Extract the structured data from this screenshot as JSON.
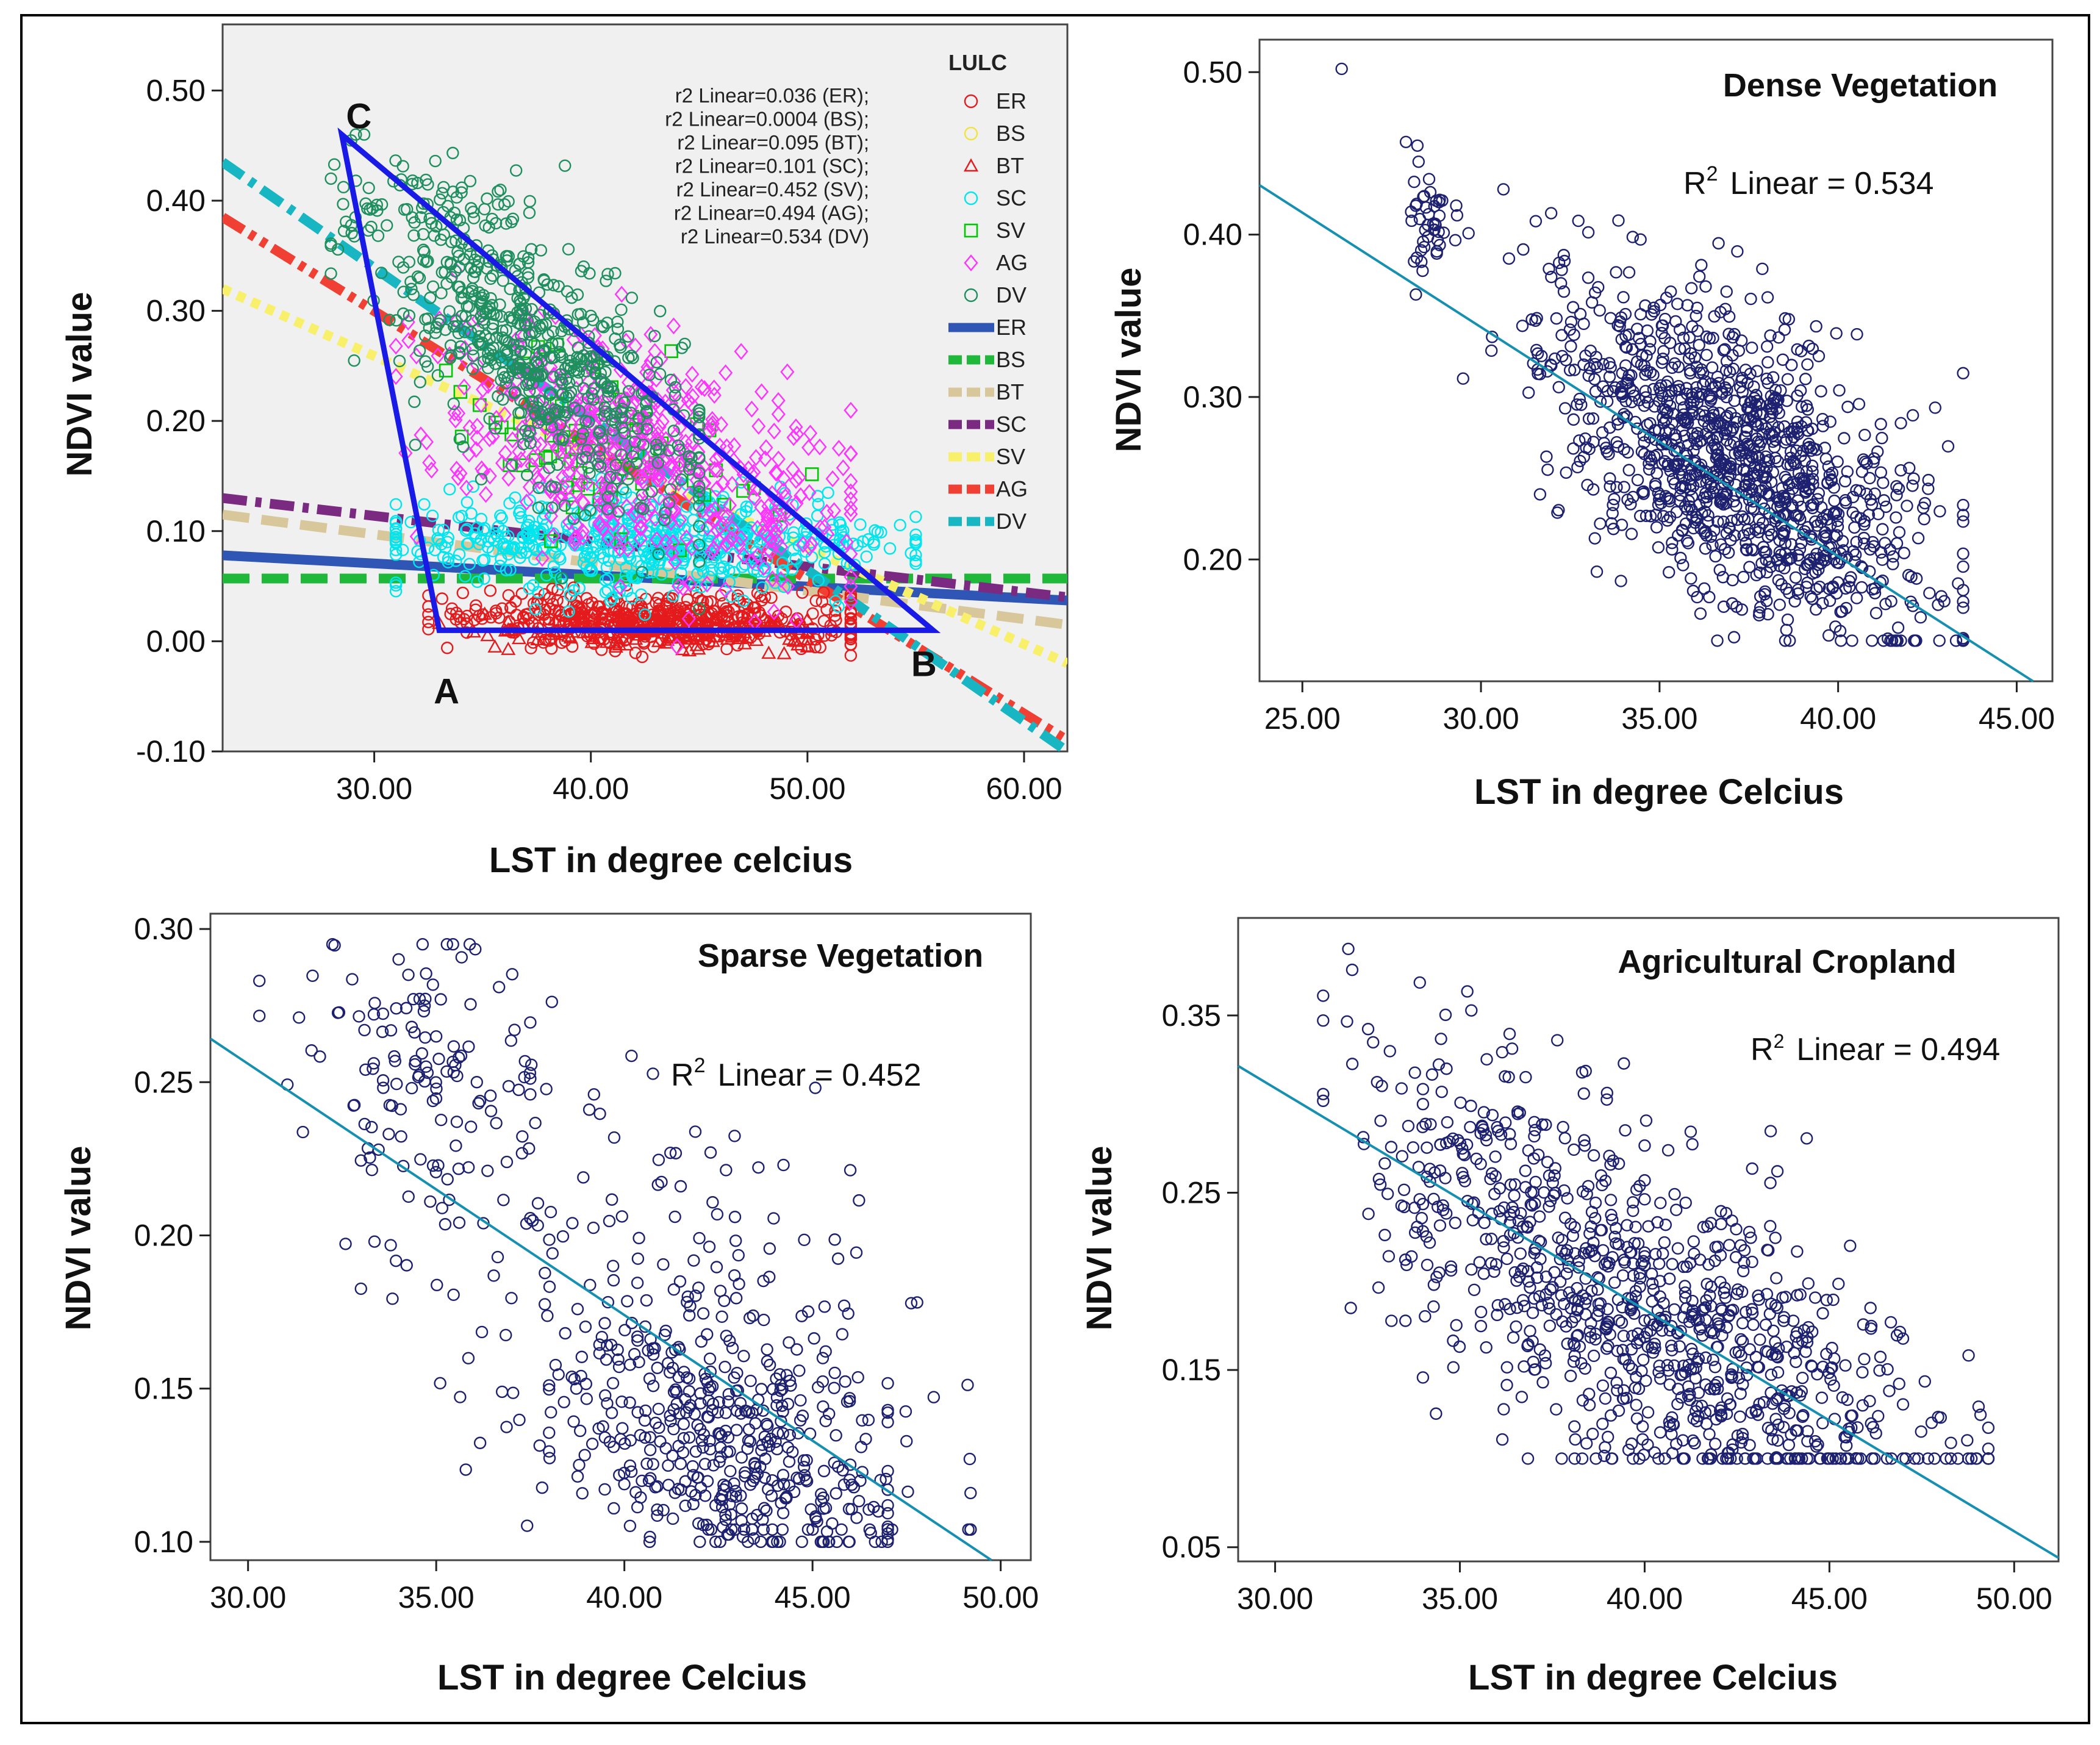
{
  "colors": {
    "ER": "#e41a1c",
    "BS": "#f0e442",
    "BT": "#e41a1c",
    "SC": "#00e5ee",
    "SV": "#00c800",
    "AG": "#ff33ff",
    "DV": "#1f8f5f",
    "line_ER": "#2f55b5",
    "line_BS": "#1fb83a",
    "line_BT": "#d8c79a",
    "line_SC": "#7b2a82",
    "line_SV": "#f8f06a",
    "line_AG": "#f04034",
    "line_DV": "#17b6c2",
    "point": "#1d2170",
    "fit": "#1590b0",
    "triangle": "#1a1ae6"
  },
  "chart_data": [
    {
      "type": "scatter",
      "xlabel": "LST in degree celcius",
      "ylabel": "NDVI value",
      "xlim": [
        23,
        62
      ],
      "ylim": [
        -0.1,
        0.56
      ],
      "xticks": [
        "30.00",
        "40.00",
        "50.00",
        "60.00"
      ],
      "yticks": [
        "-0.10",
        "0.00",
        "0.10",
        "0.20",
        "0.30",
        "0.40",
        "0.50"
      ],
      "legend_title": "LULC",
      "legend_markers": [
        "ER",
        "BS",
        "BT",
        "SC",
        "SV",
        "AG",
        "DV"
      ],
      "legend_lines": [
        "ER",
        "BS",
        "BT",
        "SC",
        "SV",
        "AG",
        "DV"
      ],
      "annotations": [
        "r2 Linear=0.036 (ER);",
        "r2 Linear=0.0004 (BS);",
        "r2 Linear=0.095 (BT);",
        "r2 Linear=0.101 (SC);",
        "r2 Linear=0.452 (SV);",
        "r2 Linear=0.494 (AG);",
        "r2 Linear=0.534 (DV)"
      ],
      "triangle": {
        "labels": [
          "A",
          "B",
          "C"
        ],
        "A": [
          33,
          0.01
        ],
        "B": [
          55.8,
          0.01
        ],
        "C": [
          28.5,
          0.46
        ]
      },
      "clusters": [
        {
          "class": "ER",
          "marker": "circle",
          "n": 450,
          "x": [
            32.5,
            52
          ],
          "center": [
            43,
            0.02
          ],
          "spread": [
            5,
            0.012
          ]
        },
        {
          "class": "BT",
          "marker": "triangle",
          "n": 160,
          "x": [
            33,
            50
          ],
          "center": [
            44,
            0.01
          ],
          "spread": [
            4,
            0.008
          ]
        },
        {
          "class": "SC",
          "marker": "circle",
          "n": 550,
          "x": [
            31,
            55
          ],
          "center": [
            42,
            0.09
          ],
          "spread": [
            6,
            0.022
          ]
        },
        {
          "class": "SV",
          "marker": "square",
          "n": 70,
          "x": [
            33,
            52
          ],
          "center": [
            41,
            0.17
          ],
          "spread": [
            4,
            0.04
          ]
        },
        {
          "class": "AG",
          "marker": "diamond",
          "n": 550,
          "x": [
            31,
            52
          ],
          "center": [
            42,
            0.16
          ],
          "spread": [
            4.5,
            0.05
          ]
        },
        {
          "class": "DV",
          "marker": "circle",
          "n": 650,
          "x": [
            28,
            45
          ],
          "center": [
            37,
            0.27
          ],
          "spread": [
            3.8,
            0.055
          ]
        }
      ],
      "fit_lines": [
        {
          "class": "ER",
          "style": "solid",
          "points": [
            [
              23,
              0.078
            ],
            [
              62,
              0.037
            ]
          ]
        },
        {
          "class": "BS",
          "style": "dash",
          "points": [
            [
              23,
              0.057
            ],
            [
              62,
              0.057
            ]
          ]
        },
        {
          "class": "BT",
          "style": "dash",
          "points": [
            [
              23,
              0.115
            ],
            [
              62,
              0.015
            ]
          ]
        },
        {
          "class": "SC",
          "style": "dashdot",
          "points": [
            [
              23,
              0.13
            ],
            [
              62,
              0.04
            ]
          ]
        },
        {
          "class": "SV",
          "style": "dot",
          "points": [
            [
              23,
              0.32
            ],
            [
              62,
              -0.02
            ]
          ]
        },
        {
          "class": "AG",
          "style": "dashdotdot",
          "points": [
            [
              23,
              0.385
            ],
            [
              62,
              -0.09
            ]
          ]
        },
        {
          "class": "DV",
          "style": "dashdot",
          "points": [
            [
              23,
              0.435
            ],
            [
              62,
              -0.1
            ]
          ]
        }
      ]
    },
    {
      "type": "scatter",
      "title": "Dense Vegetation",
      "r2_prefix": "R",
      "r2_sup": "2",
      "r2_text": "Linear = 0.534",
      "xlabel": "LST in degree Celcius",
      "ylabel": "NDVI value",
      "xlim": [
        23.8,
        46.0
      ],
      "ylim": [
        0.125,
        0.52
      ],
      "xticks": [
        "25.00",
        "30.00",
        "35.00",
        "40.00",
        "45.00"
      ],
      "yticks": [
        "0.20",
        "0.30",
        "0.40",
        "0.50"
      ],
      "fit": {
        "slope": -0.0141,
        "intercept": 0.766
      },
      "outliers": [
        [
          26.1,
          0.502
        ],
        [
          27.9,
          0.457
        ]
      ],
      "clusters": [
        {
          "n": 45,
          "x": [
            27.9,
            29.8
          ],
          "center": [
            28.6,
            0.405
          ],
          "spread": [
            0.4,
            0.02
          ]
        },
        {
          "n": 1150,
          "x": [
            29.5,
            43.5
          ],
          "center": [
            37.2,
            0.26
          ],
          "spread": [
            2.7,
            0.045
          ],
          "ymin": 0.15
        }
      ]
    },
    {
      "type": "scatter",
      "title": "Sparse Vegetation",
      "r2_prefix": "R",
      "r2_sup": "2",
      "r2_text": "Linear = 0.452",
      "xlabel": "LST in degree Celcius",
      "ylabel": "NDVI value",
      "xlim": [
        29.0,
        50.8
      ],
      "ylim": [
        0.094,
        0.305
      ],
      "xticks": [
        "30.00",
        "35.00",
        "40.00",
        "45.00",
        "50.00"
      ],
      "yticks": [
        "0.10",
        "0.15",
        "0.20",
        "0.25",
        "0.30"
      ],
      "fit": {
        "slope": -0.0082,
        "intercept": 0.502
      },
      "clusters": [
        {
          "n": 120,
          "x": [
            30.3,
            37.5
          ],
          "center": [
            34.5,
            0.255
          ],
          "spread": [
            1.5,
            0.025
          ]
        },
        {
          "n": 260,
          "x": [
            33,
            49.2
          ],
          "center": [
            41.5,
            0.17
          ],
          "spread": [
            3.5,
            0.035
          ]
        },
        {
          "n": 320,
          "x": [
            38,
            47
          ],
          "center": [
            43,
            0.13
          ],
          "spread": [
            2.2,
            0.02
          ],
          "ymin": 0.1
        }
      ]
    },
    {
      "type": "scatter",
      "title": "Agricultural Cropland",
      "r2_prefix": "R",
      "r2_sup": "2",
      "r2_text": "Linear = 0.494",
      "xlabel": "LST in degree Celcius",
      "ylabel": "NDVI value",
      "xlim": [
        29.0,
        51.2
      ],
      "ylim": [
        0.042,
        0.405
      ],
      "xticks": [
        "30.00",
        "35.00",
        "40.00",
        "45.00",
        "50.00"
      ],
      "yticks": [
        "0.05",
        "0.15",
        "0.25",
        "0.35"
      ],
      "fit": {
        "slope": -0.0125,
        "intercept": 0.684
      },
      "clusters": [
        {
          "n": 260,
          "x": [
            31.3,
            40
          ],
          "center": [
            36,
            0.25
          ],
          "spread": [
            2.2,
            0.05
          ]
        },
        {
          "n": 700,
          "x": [
            34,
            49.3
          ],
          "center": [
            41.5,
            0.16
          ],
          "spread": [
            3.2,
            0.045
          ],
          "ymin": 0.1
        }
      ]
    }
  ]
}
